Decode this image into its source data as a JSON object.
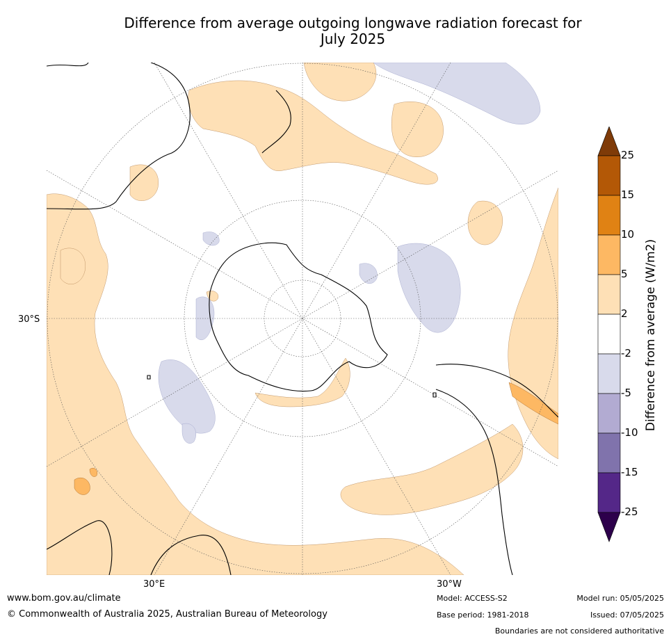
{
  "title_line1": "Difference from average outgoing longwave radiation forecast for",
  "title_line2": "July 2025",
  "map_labels": {
    "lat": "30°S",
    "lon_east": "30°E",
    "lon_west": "30°W"
  },
  "colorbar": {
    "title": "Difference from average (W/m2)",
    "ticks": [
      "25",
      "15",
      "10",
      "5",
      "2",
      "-2",
      "-5",
      "-10",
      "-15",
      "-25"
    ],
    "bins": [
      {
        "range": "above 25",
        "color": "#7f3b08"
      },
      {
        "range": "15 to 25",
        "color": "#b35806"
      },
      {
        "range": "10 to 15",
        "color": "#e08214"
      },
      {
        "range": "5 to 10",
        "color": "#fdb863"
      },
      {
        "range": "2 to 5",
        "color": "#fee0b6"
      },
      {
        "range": "-2 to 2",
        "color": "#ffffff"
      },
      {
        "range": "-5 to -2",
        "color": "#d8daeb"
      },
      {
        "range": "-10 to -5",
        "color": "#b2abd2"
      },
      {
        "range": "-15 to -10",
        "color": "#8073ac"
      },
      {
        "range": "-25 to -15",
        "color": "#542788"
      },
      {
        "range": "below -25",
        "color": "#2d004b"
      }
    ]
  },
  "footer": {
    "website": "www.bom.gov.au/climate",
    "copyright": "© Commonwealth of Australia 2025, Australian Bureau of Meteorology",
    "model": "Model: ACCESS-S2",
    "base_period": "Base period: 1981-2018",
    "model_run": "Model run: 05/05/2025",
    "issued": "Issued: 07/05/2025",
    "disclaimer": "Boundaries are not considered authoritative"
  }
}
